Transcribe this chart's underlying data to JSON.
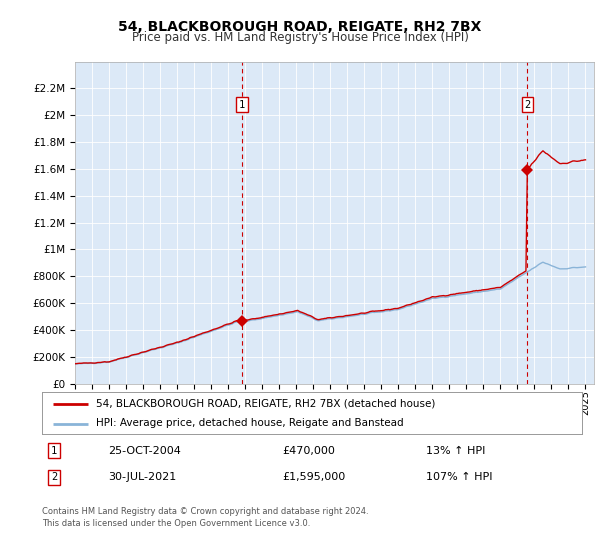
{
  "title": "54, BLACKBOROUGH ROAD, REIGATE, RH2 7BX",
  "subtitle": "Price paid vs. HM Land Registry's House Price Index (HPI)",
  "plot_bg_color": "#dce9f7",
  "ylim": [
    0,
    2400000
  ],
  "yticks": [
    0,
    200000,
    400000,
    600000,
    800000,
    1000000,
    1200000,
    1400000,
    1600000,
    1800000,
    2000000,
    2200000
  ],
  "ytick_labels": [
    "£0",
    "£200K",
    "£400K",
    "£600K",
    "£800K",
    "£1M",
    "£1.2M",
    "£1.4M",
    "£1.6M",
    "£1.8M",
    "£2M",
    "£2.2M"
  ],
  "sale1_date": 2004.82,
  "sale1_price": 470000,
  "sale1_label": "1",
  "sale1_year_label": "25-OCT-2004",
  "sale1_price_label": "£470,000",
  "sale1_hpi_label": "13% ↑ HPI",
  "sale2_date": 2021.58,
  "sale2_price": 1595000,
  "sale2_label": "2",
  "sale2_year_label": "30-JUL-2021",
  "sale2_price_label": "£1,595,000",
  "sale2_hpi_label": "107% ↑ HPI",
  "line_color_price": "#cc0000",
  "line_color_hpi": "#8ab4d8",
  "legend_label_price": "54, BLACKBOROUGH ROAD, REIGATE, RH2 7BX (detached house)",
  "legend_label_hpi": "HPI: Average price, detached house, Reigate and Banstead",
  "footer": "Contains HM Land Registry data © Crown copyright and database right 2024.\nThis data is licensed under the Open Government Licence v3.0."
}
